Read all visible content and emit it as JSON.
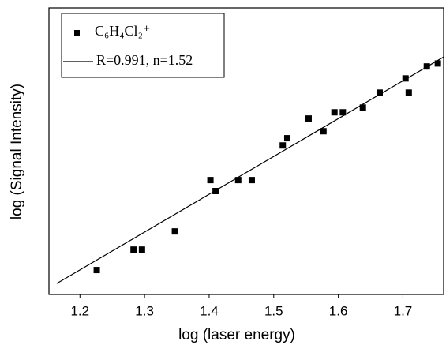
{
  "chart_data": {
    "type": "scatter",
    "x_label": "log (laser energy)",
    "y_label": "log (Signal Intensity)",
    "xlim": [
      1.152,
      1.763
    ],
    "ylim": [
      0,
      1.15
    ],
    "xticks": [
      1.2,
      1.3,
      1.4,
      1.5,
      1.6,
      1.7
    ],
    "legend": "top-left",
    "series": [
      {
        "name": "C₆H₄Cl₂⁺",
        "color": "#000000",
        "kind": "points",
        "x": [
          1.226,
          1.283,
          1.296,
          1.347,
          1.402,
          1.41,
          1.445,
          1.466,
          1.514,
          1.521,
          1.554,
          1.577,
          1.594,
          1.607,
          1.638,
          1.664,
          1.704,
          1.709,
          1.737,
          1.754
        ],
        "values": [
          0.098,
          0.18,
          0.18,
          0.253,
          0.459,
          0.415,
          0.459,
          0.459,
          0.598,
          0.627,
          0.706,
          0.655,
          0.731,
          0.731,
          0.75,
          0.81,
          0.867,
          0.81,
          0.915,
          0.927
        ]
      },
      {
        "name": "R=0.991, n=1.52",
        "color": "#000000",
        "kind": "line",
        "x": [
          1.164,
          1.763
        ],
        "values": [
          0.044,
          0.953
        ]
      }
    ]
  }
}
